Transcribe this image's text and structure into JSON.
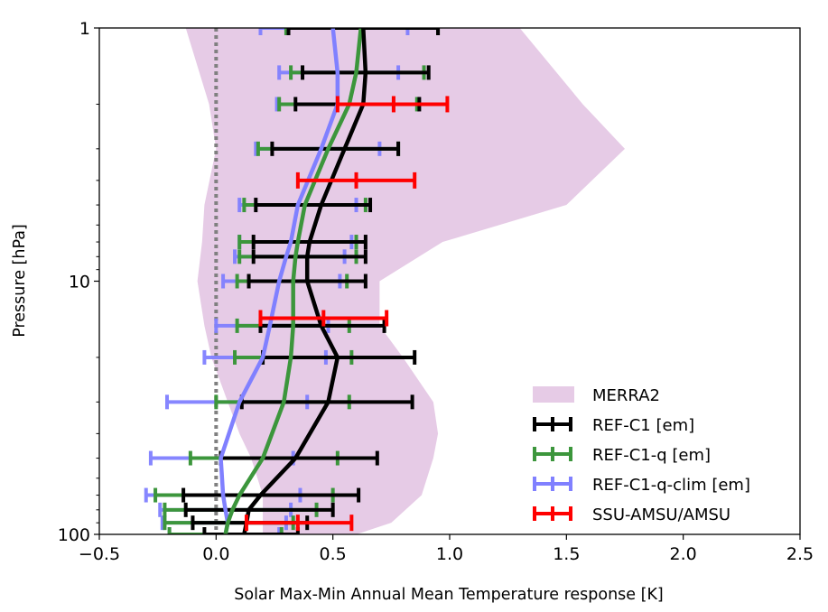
{
  "chart_data": {
    "type": "line",
    "xlabel": "Solar Max-Min Annual Mean Temperature response [K]",
    "ylabel": "Pressure [hPa]",
    "xlim": [
      -0.5,
      2.5
    ],
    "ylim": [
      100,
      1
    ],
    "yscale": "log",
    "xticks": [
      -0.5,
      0.0,
      0.5,
      1.0,
      1.5,
      2.0,
      2.5
    ],
    "xtick_labels": [
      "−0.5",
      "0.0",
      "0.5",
      "1.0",
      "1.5",
      "2.0",
      "2.5"
    ],
    "yticks": [
      1,
      10,
      100
    ],
    "ytick_labels": [
      "1",
      "10",
      "100"
    ],
    "zero_line": {
      "x": 0,
      "style": "dotted",
      "color": "#808080"
    },
    "legend_position": "lower-right",
    "legend": [
      "MERRA2",
      "REF-C1 [em]",
      "REF-C1-q [em]",
      "REF-C1-q-clim [em]",
      "SSU-AMSU/AMSU"
    ],
    "merra2_range": {
      "name": "MERRA2",
      "color": "#e6cbe6",
      "p": [
        1,
        2,
        3,
        5,
        7,
        10,
        15,
        20,
        30,
        40,
        50,
        70,
        90,
        100
      ],
      "low": [
        -0.13,
        -0.03,
        0.0,
        -0.05,
        -0.06,
        -0.08,
        -0.05,
        -0.02,
        0.05,
        0.1,
        0.15,
        0.2,
        0.2,
        0.2
      ],
      "high": [
        1.3,
        1.57,
        1.75,
        1.5,
        0.97,
        0.7,
        0.7,
        0.8,
        0.93,
        0.95,
        0.93,
        0.88,
        0.75,
        0.6
      ]
    },
    "series": [
      {
        "name": "REF-C1 [em]",
        "color": "#000000",
        "p": [
          1,
          1.5,
          2,
          3,
          5,
          7,
          8,
          10,
          15,
          20,
          30,
          50,
          70,
          80,
          90,
          100
        ],
        "mean": [
          0.63,
          0.64,
          0.63,
          0.55,
          0.45,
          0.4,
          0.39,
          0.39,
          0.45,
          0.52,
          0.48,
          0.34,
          0.19,
          0.14,
          0.13,
          0.12
        ],
        "error_p": [
          1,
          1.5,
          2,
          3,
          5,
          7,
          8,
          10,
          15,
          20,
          30,
          50,
          70,
          80,
          90,
          100
        ],
        "error_low": [
          0.31,
          0.37,
          0.34,
          0.24,
          0.17,
          0.16,
          0.16,
          0.14,
          0.19,
          0.2,
          0.11,
          0.02,
          -0.14,
          -0.13,
          -0.1,
          -0.05
        ],
        "error_high": [
          0.95,
          0.91,
          0.87,
          0.78,
          0.66,
          0.64,
          0.64,
          0.64,
          0.72,
          0.85,
          0.84,
          0.69,
          0.61,
          0.5,
          0.39,
          0.35
        ]
      },
      {
        "name": "REF-C1-q [em]",
        "color": "#3c963c",
        "p": [
          1,
          1.5,
          2,
          3,
          5,
          7,
          8,
          10,
          15,
          20,
          30,
          50,
          70,
          80,
          90,
          100
        ],
        "mean": [
          0.62,
          0.6,
          0.57,
          0.48,
          0.38,
          0.35,
          0.34,
          0.33,
          0.33,
          0.32,
          0.29,
          0.2,
          0.1,
          0.07,
          0.05,
          0.04
        ],
        "error_p": [
          1,
          1.5,
          2,
          3,
          5,
          7,
          8,
          10,
          15,
          20,
          30,
          50,
          70,
          80,
          90,
          100
        ],
        "error_low": [
          0.3,
          0.32,
          0.27,
          0.18,
          0.12,
          0.1,
          0.1,
          0.09,
          0.09,
          0.08,
          0.0,
          -0.11,
          -0.26,
          -0.22,
          -0.22,
          -0.2
        ],
        "error_high": [
          0.95,
          0.89,
          0.86,
          0.78,
          0.64,
          0.6,
          0.6,
          0.56,
          0.57,
          0.58,
          0.57,
          0.52,
          0.5,
          0.43,
          0.33,
          0.28
        ]
      },
      {
        "name": "REF-C1-q-clim [em]",
        "color": "#8080ff",
        "p": [
          1,
          1.5,
          2,
          3,
          5,
          7,
          8,
          10,
          15,
          20,
          30,
          50,
          70,
          80,
          90,
          100
        ],
        "mean": [
          0.5,
          0.52,
          0.52,
          0.45,
          0.35,
          0.32,
          0.3,
          0.27,
          0.23,
          0.2,
          0.1,
          0.02,
          0.03,
          0.04,
          0.05,
          0.04
        ],
        "error_p": [
          1,
          1.5,
          2,
          3,
          5,
          7,
          8,
          10,
          15,
          20,
          30,
          50,
          70,
          80,
          90,
          100
        ],
        "error_low": [
          0.19,
          0.27,
          0.26,
          0.17,
          0.1,
          0.1,
          0.08,
          0.03,
          0.0,
          -0.05,
          -0.21,
          -0.28,
          -0.3,
          -0.24,
          -0.23,
          -0.2
        ],
        "error_high": [
          0.82,
          0.78,
          0.76,
          0.7,
          0.6,
          0.58,
          0.55,
          0.53,
          0.48,
          0.47,
          0.39,
          0.33,
          0.36,
          0.32,
          0.3,
          0.27
        ]
      },
      {
        "name": "SSU-AMSU/AMSU",
        "color": "#ff0000",
        "error_p": [
          2,
          4,
          14,
          90
        ],
        "error_x": [
          0.76,
          0.6,
          0.46,
          0.35
        ],
        "error_low": [
          0.52,
          0.35,
          0.19,
          0.13
        ],
        "error_high": [
          0.99,
          0.85,
          0.73,
          0.58
        ]
      }
    ]
  }
}
